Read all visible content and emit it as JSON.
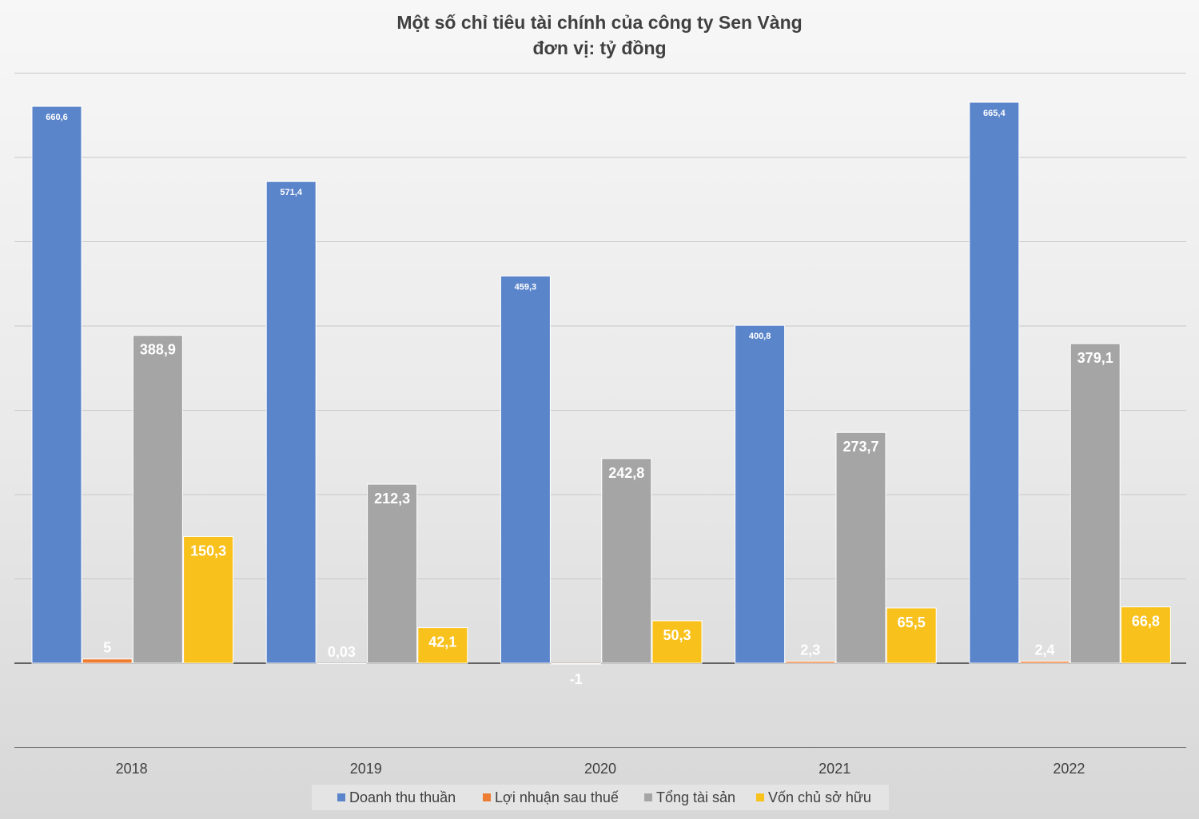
{
  "chart_data": {
    "type": "bar",
    "title": "Một số chỉ tiêu tài chính của công ty Sen Vàng",
    "subtitle": "đơn vị: tỷ đồng",
    "categories": [
      "2018",
      "2019",
      "2020",
      "2021",
      "2022"
    ],
    "series": [
      {
        "name": "Doanh thu thuần",
        "color": "#5b85cb",
        "values": [
          660.6,
          571.4,
          459.3,
          400.8,
          665.4
        ],
        "labels": [
          "660,6",
          "571,4",
          "459,3",
          "400,8",
          "665,4"
        ]
      },
      {
        "name": "Lợi nhuận sau thuế",
        "color": "#ed7d31",
        "values": [
          5,
          0.03,
          -1,
          2.3,
          2.4
        ],
        "labels": [
          "5",
          "0,03",
          "-1",
          "2,3",
          "2,4"
        ]
      },
      {
        "name": "Tổng tài sản",
        "color": "#a5a5a5",
        "values": [
          388.9,
          212.3,
          242.8,
          273.7,
          379.1
        ],
        "labels": [
          "388,9",
          "212,3",
          "242,8",
          "273,7",
          "379,1"
        ]
      },
      {
        "name": "Vốn chủ sở hữu",
        "color": "#f9c11c",
        "values": [
          150.3,
          42.1,
          50.3,
          65.5,
          66.8
        ],
        "labels": [
          "150,3",
          "42,1",
          "50,3",
          "65,5",
          "66,8"
        ]
      }
    ],
    "ylim": [
      -100,
      700
    ],
    "gridline_step": 100,
    "grid": true,
    "y_tick_labels_visible": false,
    "legend_position": "bottom",
    "xlabel": "",
    "ylabel": ""
  }
}
